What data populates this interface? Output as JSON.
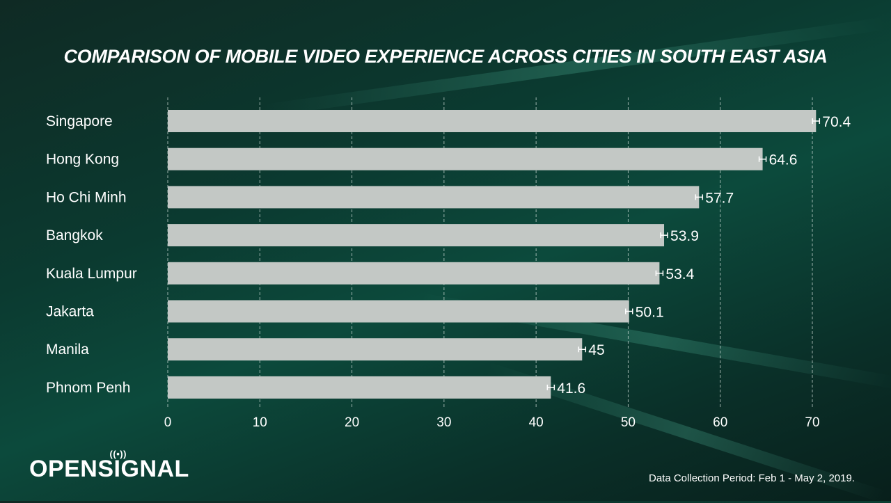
{
  "chart_data": {
    "type": "bar",
    "orientation": "horizontal",
    "title": "COMPARISON OF MOBILE VIDEO EXPERIENCE ACROSS CITIES IN SOUTH EAST ASIA",
    "categories": [
      "Singapore",
      "Hong Kong",
      "Ho Chi Minh",
      "Bangkok",
      "Kuala Lumpur",
      "Jakarta",
      "Manila",
      "Phnom Penh"
    ],
    "values": [
      70.4,
      64.6,
      57.7,
      53.9,
      53.4,
      50.1,
      45,
      41.6
    ],
    "data_labels": [
      "70.4",
      "64.6",
      "57.7",
      "53.9",
      "53.4",
      "50.1",
      "45",
      "41.6"
    ],
    "error_bars": true,
    "xlim": [
      0,
      70
    ],
    "xticks": [
      "0",
      "10",
      "20",
      "30",
      "40",
      "50",
      "60",
      "70"
    ],
    "grid": "vertical dashed",
    "bar_color": "#c3c8c5",
    "text_color": "#ffffff"
  },
  "branding": {
    "logo": "OPENSIGNAL"
  },
  "footnote": "Data Collection Period:  Feb 1 - May 2, 2019."
}
